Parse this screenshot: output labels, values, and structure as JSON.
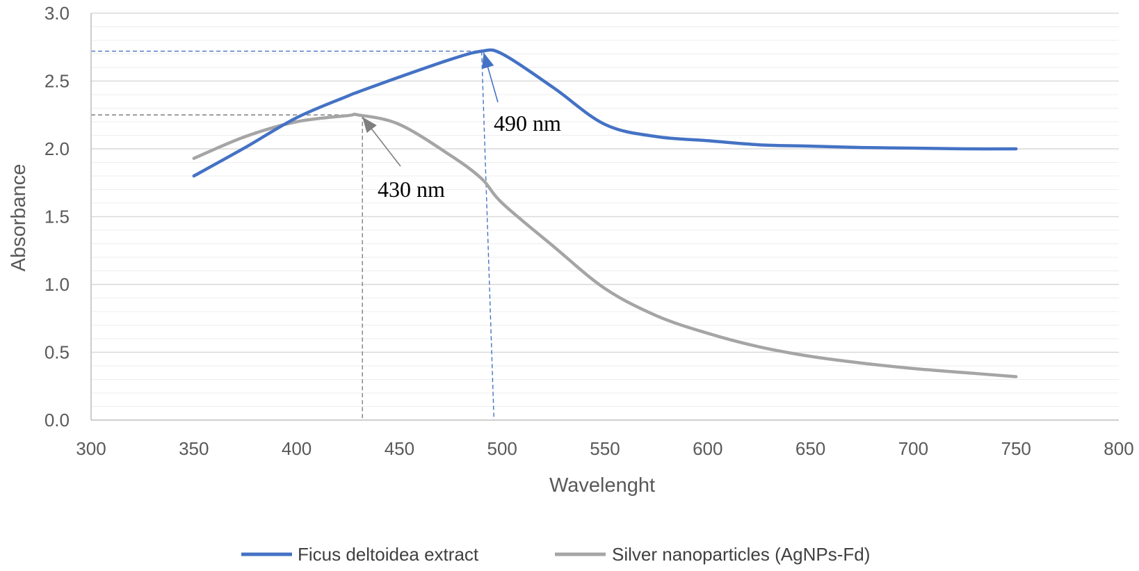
{
  "chart_data": {
    "type": "line",
    "xlabel": "Wavelenght",
    "ylabel": "Absorbance",
    "xlim": [
      300,
      800
    ],
    "ylim": [
      0,
      3.0
    ],
    "x_ticks": [
      "300",
      "350",
      "400",
      "450",
      "500",
      "550",
      "600",
      "650",
      "700",
      "750",
      "800"
    ],
    "y_ticks": [
      "0.0",
      "0.5",
      "1.0",
      "1.5",
      "2.0",
      "2.5",
      "3.0"
    ],
    "grid": true,
    "legend_position": "bottom",
    "x": [
      350,
      375,
      400,
      425,
      430,
      450,
      475,
      490,
      500,
      525,
      550,
      575,
      600,
      625,
      650,
      675,
      700,
      725,
      750
    ],
    "series": [
      {
        "name": "Ficus deltoidea extract",
        "color": "#4472C4",
        "values": [
          1.8,
          2.01,
          2.23,
          2.39,
          2.42,
          2.53,
          2.66,
          2.72,
          2.7,
          2.45,
          2.18,
          2.09,
          2.06,
          2.03,
          2.02,
          2.01,
          2.005,
          2.0,
          2.0
        ]
      },
      {
        "name": "Silver nanoparticles (AgNPs-Fd)",
        "color": "#A5A5A5",
        "values": [
          1.93,
          2.09,
          2.2,
          2.245,
          2.25,
          2.18,
          1.95,
          1.78,
          1.6,
          1.28,
          0.97,
          0.77,
          0.64,
          0.54,
          0.47,
          0.42,
          0.38,
          0.35,
          0.32
        ]
      }
    ],
    "annotations": [
      {
        "text": "490 nm",
        "x": 490,
        "y": 2.72,
        "color": "#4472C4"
      },
      {
        "text": "430 nm",
        "x": 430,
        "y": 2.25,
        "color": "#7F7F7F"
      }
    ]
  }
}
